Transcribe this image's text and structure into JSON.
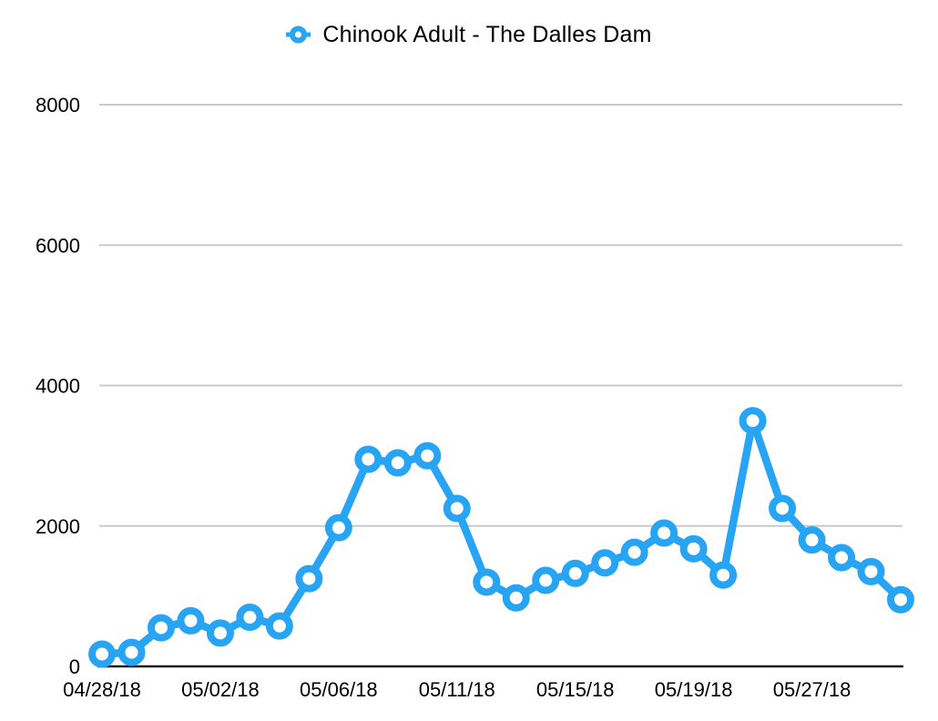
{
  "colors": {
    "series_blue": "#28a4f4",
    "gridline": "#c9c9c9",
    "axis": "#1a1a1a",
    "background": "#ffffff",
    "text": "#000000"
  },
  "chart_data": {
    "type": "line",
    "title": "Chinook Adult - The Dalles Dam",
    "grid": "horizontal",
    "legend_position": "top-center",
    "ylim": [
      0,
      8000
    ],
    "y_ticks": [
      0,
      2000,
      4000,
      6000,
      8000
    ],
    "x_ticks": [
      {
        "index": 0,
        "label": "04/28/18"
      },
      {
        "index": 4,
        "label": "05/02/18"
      },
      {
        "index": 8,
        "label": "05/06/18"
      },
      {
        "index": 12,
        "label": "05/11/18"
      },
      {
        "index": 16,
        "label": "05/15/18"
      },
      {
        "index": 20,
        "label": "05/19/18"
      },
      {
        "index": 24,
        "label": "05/27/18"
      }
    ],
    "series": [
      {
        "name": "Chinook Adult - The Dalles Dam",
        "marker": "open-circle",
        "color": "#28a4f4",
        "values": [
          175,
          200,
          550,
          650,
          475,
          700,
          575,
          1250,
          1975,
          2950,
          2900,
          3000,
          2250,
          1200,
          975,
          1225,
          1325,
          1475,
          1625,
          1900,
          1675,
          1300,
          3500,
          2250,
          1800,
          1550,
          1350,
          950
        ]
      }
    ]
  }
}
